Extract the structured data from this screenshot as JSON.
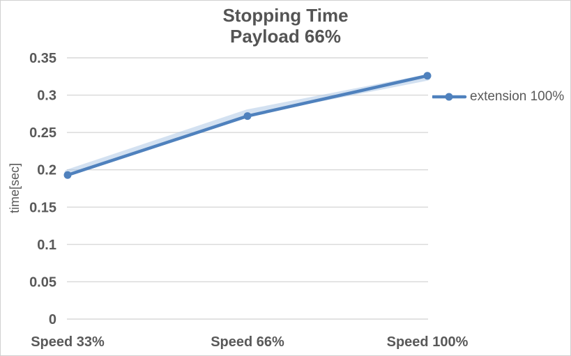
{
  "chart_data": {
    "type": "line",
    "title": "Stopping Time",
    "subtitle": "Payload 66%",
    "xlabel": "",
    "ylabel": "time[sec]",
    "categories": [
      "Speed 33%",
      "Speed 66%",
      "Speed 100%"
    ],
    "series": [
      {
        "name": "extension 100%",
        "values": [
          0.193,
          0.272,
          0.326
        ]
      }
    ],
    "ylim": [
      0,
      0.35
    ],
    "ytick_step": 0.05,
    "ytick_labels": [
      "0",
      "0.05",
      "0.1",
      "0.15",
      "0.2",
      "0.25",
      "0.3",
      "0.35"
    ],
    "grid": true,
    "legend_position": "right-of-plot",
    "colors": {
      "series_blue": "#4F81BD",
      "series_glow": "#AFC8E5",
      "gridline": "#D8D8D8",
      "axis_text": "#595959",
      "title_text": "#545454",
      "background": "#FFFFFF",
      "canvas_border": "#D0D0D0"
    }
  }
}
